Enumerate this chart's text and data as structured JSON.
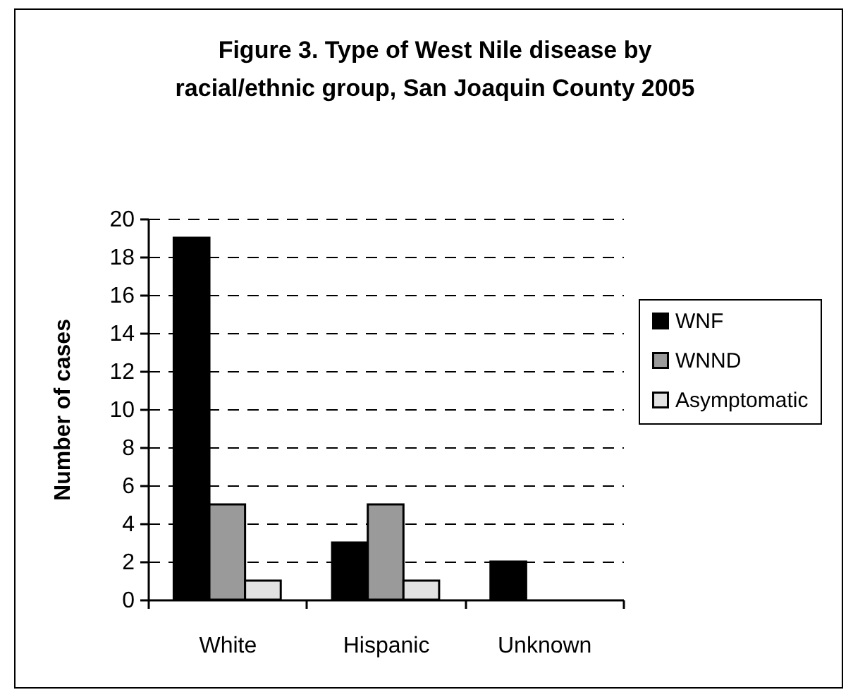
{
  "chart_data": {
    "type": "bar",
    "title": "Figure 3. Type of West Nile disease by racial/ethnic group, San Joaquin County 2005",
    "ylabel": "Number of cases",
    "categories": [
      "White",
      "Hispanic",
      "Unknown"
    ],
    "series": [
      {
        "name": "WNF",
        "color": "#000000",
        "values": [
          19,
          3,
          2
        ]
      },
      {
        "name": "WNND",
        "color": "#9a9a9a",
        "values": [
          5,
          5,
          null
        ]
      },
      {
        "name": "Asymptomatic",
        "color": "#e2e2e2",
        "values": [
          1,
          1,
          null
        ]
      }
    ],
    "ylim": [
      0,
      20
    ],
    "yticks": [
      0,
      2,
      4,
      6,
      8,
      10,
      12,
      14,
      16,
      18,
      20
    ],
    "grid": "y",
    "legend": "right"
  }
}
